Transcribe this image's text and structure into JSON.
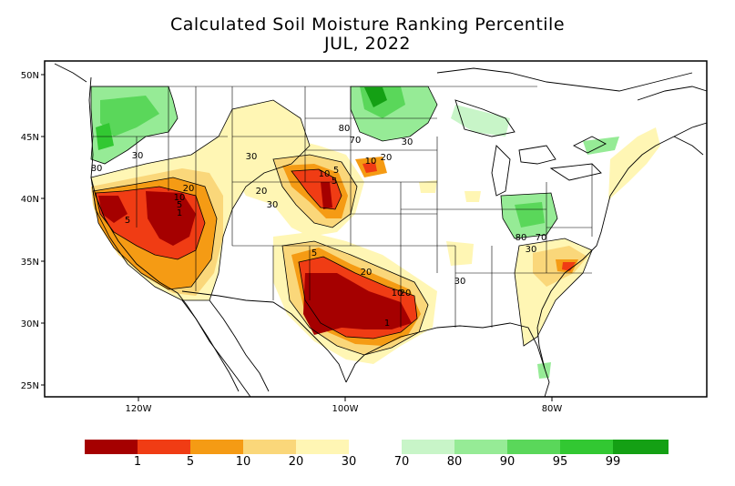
{
  "title_line1": "Calculated Soil Moisture Ranking Percentile",
  "title_line2": "JUL, 2022",
  "lat_labels": [
    "50N",
    "45N",
    "40N",
    "35N",
    "30N",
    "25N"
  ],
  "lon_labels": [
    "120W",
    "100W",
    "80W"
  ],
  "legend": {
    "dry_colors": [
      "#a50000",
      "#f03c14",
      "#f59b14",
      "#fad77a",
      "#fff6b4"
    ],
    "wet_colors": [
      "#c8f5c8",
      "#96eb96",
      "#5ad75a",
      "#32c832",
      "#14a014"
    ],
    "labels": [
      "1",
      "5",
      "10",
      "20",
      "30",
      "70",
      "80",
      "90",
      "95",
      "99"
    ]
  },
  "contour_labels": [
    "30",
    "80",
    "20",
    "10",
    "5",
    "1",
    "5",
    "30",
    "20",
    "30",
    "5",
    "10",
    "20",
    "80",
    "70",
    "30",
    "10",
    "5",
    "5",
    "20",
    "10",
    "20",
    "1",
    "30",
    "80",
    "70",
    "30"
  ]
}
